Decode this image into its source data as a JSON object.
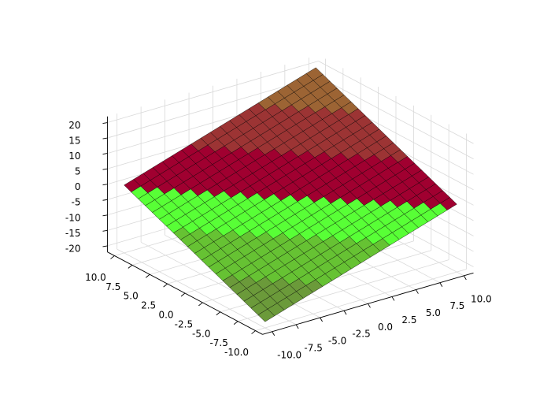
{
  "chart_data": {
    "type": "surface",
    "x": [
      -10,
      -9,
      -8,
      -7,
      -6,
      -5,
      -4,
      -3,
      -2,
      -1,
      0,
      1,
      2,
      3,
      4,
      5,
      6,
      7,
      8,
      9,
      10
    ],
    "y": [
      -10,
      -9,
      -8,
      -7,
      -6,
      -5,
      -4,
      -3,
      -2,
      -1,
      0,
      1,
      2,
      3,
      4,
      5,
      6,
      7,
      8,
      9,
      10
    ],
    "z": [
      [
        -20,
        -19,
        -18,
        -17,
        -16,
        -15,
        -14,
        -13,
        -12,
        -11,
        -10,
        -9,
        -8,
        -7,
        -6,
        -5,
        -4,
        -3,
        -2,
        -1,
        0
      ],
      [
        -19,
        -18,
        -17,
        -16,
        -15,
        -14,
        -13,
        -12,
        -11,
        -10,
        -9,
        -8,
        -7,
        -6,
        -5,
        -4,
        -3,
        -2,
        -1,
        0,
        1
      ],
      [
        -18,
        -17,
        -16,
        -15,
        -14,
        -13,
        -12,
        -11,
        -10,
        -9,
        -8,
        -7,
        -6,
        -5,
        -4,
        -3,
        -2,
        -1,
        0,
        1,
        2
      ],
      [
        -17,
        -16,
        -15,
        -14,
        -13,
        -12,
        -11,
        -10,
        -9,
        -8,
        -7,
        -6,
        -5,
        -4,
        -3,
        -2,
        -1,
        0,
        1,
        2,
        3
      ],
      [
        -16,
        -15,
        -14,
        -13,
        -12,
        -11,
        -10,
        -9,
        -8,
        -7,
        -6,
        -5,
        -4,
        -3,
        -2,
        -1,
        0,
        1,
        2,
        3,
        4
      ],
      [
        -15,
        -14,
        -13,
        -12,
        -11,
        -10,
        -9,
        -8,
        -7,
        -6,
        -5,
        -4,
        -3,
        -2,
        -1,
        0,
        1,
        2,
        3,
        4,
        5
      ],
      [
        -14,
        -13,
        -12,
        -11,
        -10,
        -9,
        -8,
        -7,
        -6,
        -5,
        -4,
        -3,
        -2,
        -1,
        0,
        1,
        2,
        3,
        4,
        5,
        6
      ],
      [
        -13,
        -12,
        -11,
        -10,
        -9,
        -8,
        -7,
        -6,
        -5,
        -4,
        -3,
        -2,
        -1,
        0,
        1,
        2,
        3,
        4,
        5,
        6,
        7
      ],
      [
        -12,
        -11,
        -10,
        -9,
        -8,
        -7,
        -6,
        -5,
        -4,
        -3,
        -2,
        -1,
        0,
        1,
        2,
        3,
        4,
        5,
        6,
        7,
        8
      ],
      [
        -11,
        -10,
        -9,
        -8,
        -7,
        -6,
        -5,
        -4,
        -3,
        -2,
        -1,
        0,
        1,
        2,
        3,
        4,
        5,
        6,
        7,
        8,
        9
      ],
      [
        -10,
        -9,
        -8,
        -7,
        -6,
        -5,
        -4,
        -3,
        -2,
        -1,
        0,
        1,
        2,
        3,
        4,
        5,
        6,
        7,
        8,
        9,
        10
      ],
      [
        -9,
        -8,
        -7,
        -6,
        -5,
        -4,
        -3,
        -2,
        -1,
        0,
        1,
        2,
        3,
        4,
        5,
        6,
        7,
        8,
        9,
        10,
        11
      ],
      [
        -8,
        -7,
        -6,
        -5,
        -4,
        -3,
        -2,
        -1,
        0,
        1,
        2,
        3,
        4,
        5,
        6,
        7,
        8,
        9,
        10,
        11,
        12
      ],
      [
        -7,
        -6,
        -5,
        -4,
        -3,
        -2,
        -1,
        0,
        1,
        2,
        3,
        4,
        5,
        6,
        7,
        8,
        9,
        10,
        11,
        12,
        13
      ],
      [
        -6,
        -5,
        -4,
        -3,
        -2,
        -1,
        0,
        1,
        2,
        3,
        4,
        5,
        6,
        7,
        8,
        9,
        10,
        11,
        12,
        13,
        14
      ],
      [
        -5,
        -4,
        -3,
        -2,
        -1,
        0,
        1,
        2,
        3,
        4,
        5,
        6,
        7,
        8,
        9,
        10,
        11,
        12,
        13,
        14,
        15
      ],
      [
        -4,
        -3,
        -2,
        -1,
        0,
        1,
        2,
        3,
        4,
        5,
        6,
        7,
        8,
        9,
        10,
        11,
        12,
        13,
        14,
        15,
        16
      ],
      [
        -3,
        -2,
        -1,
        0,
        1,
        2,
        3,
        4,
        5,
        6,
        7,
        8,
        9,
        10,
        11,
        12,
        13,
        14,
        15,
        16,
        17
      ],
      [
        -2,
        -1,
        0,
        1,
        2,
        3,
        4,
        5,
        6,
        7,
        8,
        9,
        10,
        11,
        12,
        13,
        14,
        15,
        16,
        17,
        18
      ],
      [
        -1,
        0,
        1,
        2,
        3,
        4,
        5,
        6,
        7,
        8,
        9,
        10,
        11,
        12,
        13,
        14,
        15,
        16,
        17,
        18,
        19
      ],
      [
        0,
        1,
        2,
        3,
        4,
        5,
        6,
        7,
        8,
        9,
        10,
        11,
        12,
        13,
        14,
        15,
        16,
        17,
        18,
        19,
        20
      ]
    ],
    "levels": [
      -20,
      -13.33,
      -6.67,
      0,
      6.67,
      13.33,
      20
    ],
    "colors": [
      "#6b9a3a",
      "#66c233",
      "#58ff36",
      "#a00030",
      "#9c3434",
      "#9c6434"
    ],
    "xlim": [
      -11,
      11
    ],
    "ylim": [
      -11,
      11
    ],
    "zlim": [
      -22,
      22
    ],
    "xticks": [
      {
        "value": -10,
        "label": "-10.0"
      },
      {
        "value": -7.5,
        "label": "-7.5"
      },
      {
        "value": -5,
        "label": "-5.0"
      },
      {
        "value": -2.5,
        "label": "-2.5"
      },
      {
        "value": 0,
        "label": "0.0"
      },
      {
        "value": 2.5,
        "label": "2.5"
      },
      {
        "value": 5,
        "label": "5.0"
      },
      {
        "value": 7.5,
        "label": "7.5"
      },
      {
        "value": 10,
        "label": "10.0"
      }
    ],
    "yticks": [
      {
        "value": -10,
        "label": "-10.0"
      },
      {
        "value": -7.5,
        "label": "-7.5"
      },
      {
        "value": -5,
        "label": "-5.0"
      },
      {
        "value": -2.5,
        "label": "-2.5"
      },
      {
        "value": 0,
        "label": "0.0"
      },
      {
        "value": 2.5,
        "label": "2.5"
      },
      {
        "value": 5,
        "label": "5.0"
      },
      {
        "value": 7.5,
        "label": "7.5"
      },
      {
        "value": 10,
        "label": "10.0"
      }
    ],
    "zticks": [
      -20,
      -15,
      -10,
      -5,
      0,
      5,
      10,
      15,
      20
    ],
    "grid": true
  }
}
